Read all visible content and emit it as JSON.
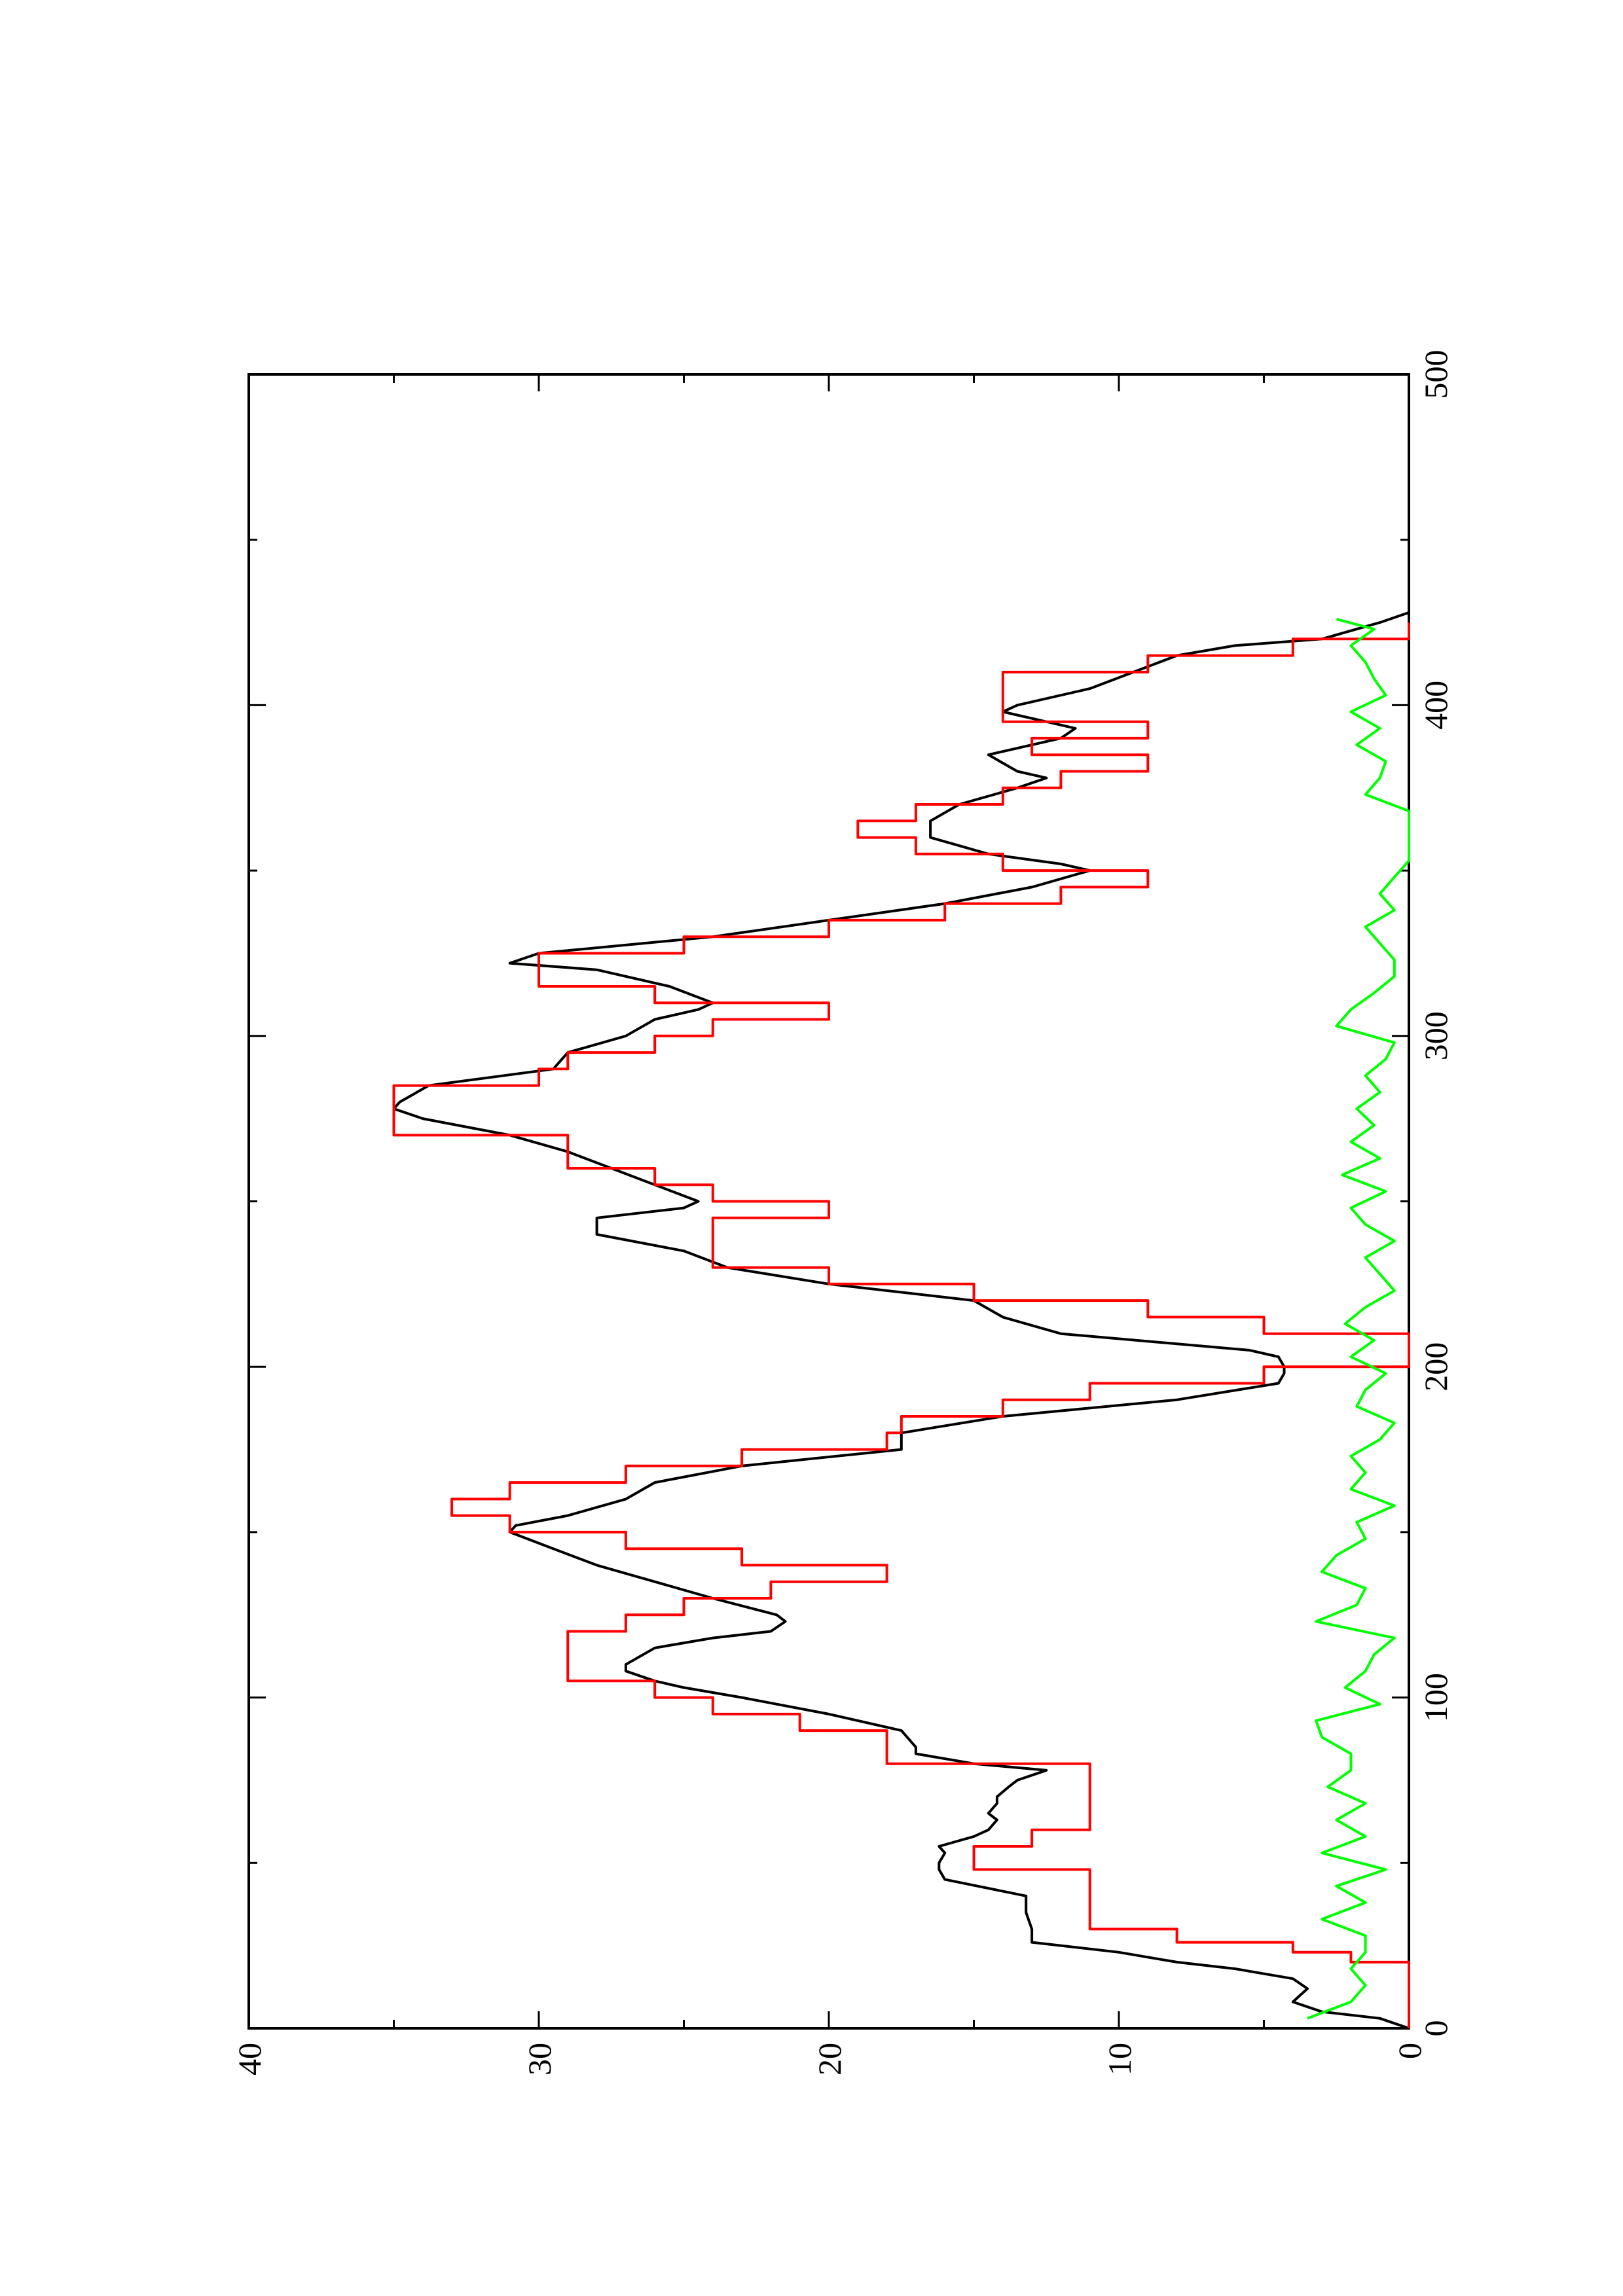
{
  "chart_data": {
    "type": "line",
    "orientation": "rotated-90-ccw",
    "title": "",
    "xlabel": "",
    "ylabel": "",
    "xlim": [
      0,
      500
    ],
    "ylim": [
      0,
      40
    ],
    "x_ticks": [
      "0",
      "100",
      "200",
      "300",
      "400",
      "500"
    ],
    "y_ticks": [
      "0",
      "10",
      "20",
      "30",
      "40"
    ],
    "x_minor_step": 50,
    "y_minor_step": 5,
    "grid": false,
    "legend": "none",
    "series": [
      {
        "color": "#000000",
        "step": false,
        "x": [
          0,
          3,
          5,
          8,
          12,
          15,
          18,
          20,
          23,
          26,
          28,
          30,
          35,
          40,
          45,
          48,
          50,
          53,
          55,
          58,
          60,
          63,
          65,
          68,
          70,
          73,
          75,
          78,
          80,
          83,
          85,
          90,
          95,
          100,
          103,
          105,
          108,
          110,
          115,
          118,
          120,
          123,
          125,
          130,
          135,
          140,
          145,
          150,
          152,
          155,
          160,
          165,
          170,
          175,
          178,
          180,
          185,
          190,
          195,
          198,
          200,
          203,
          205,
          210,
          215,
          220,
          225,
          230,
          235,
          240,
          245,
          248,
          250,
          255,
          260,
          265,
          270,
          275,
          278,
          280,
          285,
          290,
          295,
          300,
          305,
          308,
          310,
          315,
          320,
          322,
          325,
          330,
          335,
          340,
          345,
          350,
          352,
          355,
          360,
          365,
          370,
          375,
          378,
          380,
          385,
          390,
          393,
          395,
          398,
          400,
          405,
          410,
          415,
          418,
          420,
          425,
          428
        ],
        "y": [
          0,
          1,
          3,
          4,
          3.5,
          4,
          6,
          8,
          10,
          13,
          13,
          13,
          13.2,
          13.2,
          16,
          16.2,
          16.2,
          16,
          16.2,
          15,
          14.5,
          14.2,
          14.5,
          14.2,
          14.2,
          13.8,
          13.5,
          12.5,
          15,
          17,
          17,
          17.5,
          20,
          23,
          25,
          26,
          27,
          27,
          26,
          24,
          22,
          21.5,
          21.8,
          24,
          26,
          28,
          29.5,
          31,
          30.8,
          29,
          27,
          26,
          23,
          17.5,
          17.5,
          17.5,
          14,
          8,
          4.5,
          4.3,
          4.3,
          4.5,
          5.5,
          12,
          14,
          15,
          20,
          23.5,
          25,
          28,
          28,
          25,
          24.5,
          26,
          27.5,
          29,
          31,
          34,
          35,
          34.8,
          33.8,
          29.5,
          29,
          27,
          26,
          24.5,
          24,
          25.5,
          28,
          31,
          30,
          24,
          20,
          16,
          13,
          11,
          12,
          14.5,
          16.5,
          16.5,
          15.5,
          13.5,
          12.5,
          13.5,
          14.5,
          12,
          11.5,
          12.5,
          14,
          13.5,
          11,
          9.5,
          8,
          6,
          3,
          1,
          0
        ]
      },
      {
        "color": "#ff0000",
        "step": true,
        "x": [
          0,
          18,
          20,
          23,
          26,
          30,
          35,
          40,
          48,
          50,
          55,
          60,
          65,
          70,
          75,
          80,
          85,
          90,
          95,
          100,
          105,
          110,
          115,
          120,
          125,
          130,
          135,
          140,
          145,
          150,
          155,
          160,
          165,
          170,
          175,
          180,
          185,
          190,
          195,
          200,
          205,
          210,
          215,
          220,
          225,
          230,
          235,
          240,
          245,
          250,
          255,
          260,
          265,
          270,
          275,
          280,
          285,
          290,
          295,
          300,
          305,
          310,
          315,
          320,
          325,
          330,
          335,
          340,
          345,
          350,
          355,
          360,
          365,
          370,
          375,
          380,
          385,
          390,
          395,
          400,
          405,
          410,
          415,
          420,
          425
        ],
        "y": [
          0,
          0,
          2,
          4,
          8,
          11,
          11,
          11,
          15,
          15,
          13,
          11,
          11,
          11,
          11,
          18,
          18,
          21,
          24,
          26,
          29,
          29,
          29,
          27,
          25,
          22,
          18,
          23,
          27,
          31,
          33,
          31,
          27,
          23,
          18,
          17.5,
          14,
          11,
          5,
          0,
          0,
          5,
          9,
          15,
          20,
          24,
          24,
          24,
          20,
          24,
          26,
          29,
          29,
          35,
          35,
          35,
          30,
          29,
          26,
          24,
          20,
          26,
          30,
          30,
          25,
          20,
          16,
          12,
          9,
          14,
          17,
          19,
          17,
          14,
          12,
          9,
          13,
          9,
          14,
          14,
          14,
          9,
          4,
          0,
          0
        ]
      },
      {
        "color": "#00ff00",
        "step": false,
        "x": [
          3,
          8,
          13,
          18,
          23,
          28,
          33,
          38,
          43,
          48,
          53,
          58,
          63,
          68,
          73,
          78,
          83,
          88,
          93,
          98,
          103,
          108,
          113,
          118,
          123,
          128,
          133,
          138,
          143,
          148,
          153,
          158,
          163,
          168,
          173,
          178,
          183,
          188,
          193,
          198,
          203,
          208,
          213,
          218,
          223,
          228,
          233,
          238,
          243,
          248,
          253,
          258,
          263,
          268,
          273,
          278,
          283,
          288,
          293,
          298,
          303,
          308,
          313,
          318,
          323,
          328,
          333,
          338,
          343,
          348,
          353,
          358,
          363,
          368,
          373,
          378,
          383,
          388,
          393,
          398,
          403,
          408,
          413,
          418,
          423,
          426
        ],
        "y": [
          3.5,
          2,
          1.5,
          2,
          1.5,
          1.5,
          3,
          1.5,
          2.5,
          0.8,
          3,
          1.5,
          2.5,
          1.5,
          2.8,
          2,
          2,
          3,
          3.2,
          1,
          2.2,
          1.5,
          1.2,
          0.5,
          3.2,
          1.8,
          1.5,
          3,
          2.5,
          1.5,
          1.8,
          0.5,
          2,
          1.5,
          2,
          1,
          0.5,
          1.8,
          1.5,
          0.8,
          2,
          1.2,
          2.2,
          1.5,
          0.5,
          1,
          1.5,
          0.5,
          1.5,
          2,
          0.8,
          2.3,
          1,
          2,
          1.2,
          1.8,
          1,
          1.5,
          0.8,
          0.5,
          2.5,
          2,
          1.2,
          0.5,
          0.5,
          1,
          1.5,
          0.5,
          1,
          0.5,
          0,
          0,
          0,
          0,
          1.5,
          1,
          0.8,
          1.8,
          1,
          2,
          0.8,
          1.2,
          1.5,
          2,
          1.2,
          2.5
        ]
      }
    ]
  }
}
